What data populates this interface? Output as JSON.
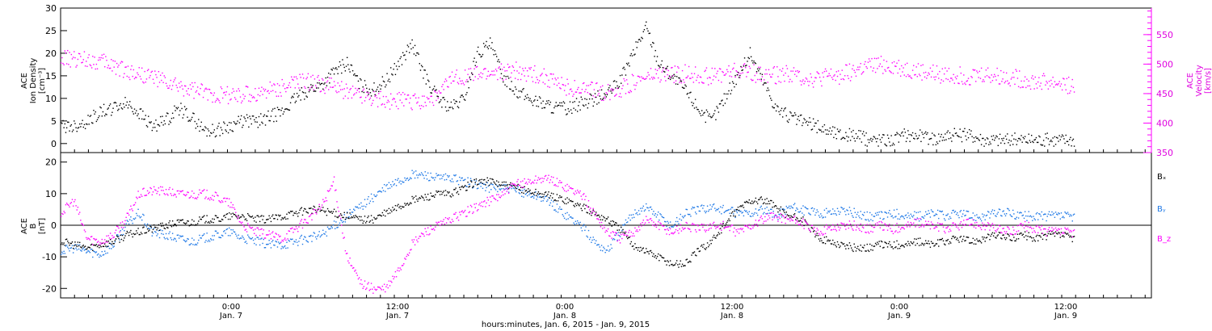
{
  "chart_data": [
    {
      "type": "scatter",
      "panel": "top",
      "ylabel_left": [
        "ACE",
        "Ion Density",
        "[cm⁻³]"
      ],
      "ylabel_right": [
        "ACE",
        "Velocity",
        "[km/s]"
      ],
      "ylim_left": [
        -2,
        30
      ],
      "yticks_left": [
        0,
        5,
        10,
        15,
        20,
        25,
        30
      ],
      "ylim_right": [
        350,
        595
      ],
      "yticks_right": [
        350,
        400,
        450,
        500,
        550
      ],
      "grid": false,
      "series": [
        {
          "name": "",
          "axis": "left",
          "color": "#000000",
          "x": [
            0,
            1,
            2,
            3,
            4,
            5,
            6,
            7,
            8,
            9,
            10,
            11,
            12,
            13,
            14,
            15,
            16,
            17,
            18,
            19,
            20,
            21,
            22,
            23,
            24,
            25,
            26,
            27,
            28,
            29,
            30,
            31,
            32,
            33,
            34,
            35,
            36,
            37,
            38,
            39,
            40,
            41,
            42,
            43,
            44,
            45,
            46,
            47,
            48,
            49,
            50,
            51,
            52,
            53,
            54,
            55,
            56,
            57,
            58,
            59,
            60,
            61,
            62,
            63,
            64,
            65,
            66,
            67,
            68,
            69,
            70,
            71,
            72,
            73,
            74,
            75,
            76,
            77,
            78
          ],
          "y": [
            4,
            4,
            5,
            7,
            8,
            9,
            7,
            4,
            5,
            8,
            6,
            3,
            3,
            4,
            5,
            5,
            6,
            7,
            10,
            12,
            13,
            16,
            18,
            13,
            12,
            14,
            18,
            22,
            15,
            10,
            8,
            10,
            20,
            22,
            15,
            12,
            10,
            9,
            8,
            8,
            9,
            10,
            11,
            14,
            20,
            26,
            18,
            15,
            12,
            8,
            5,
            10,
            15,
            20,
            14,
            8,
            6,
            5,
            4,
            3,
            2,
            2,
            1,
            1,
            1,
            2,
            2,
            1,
            2,
            2,
            2,
            1,
            1,
            1,
            1,
            1,
            1,
            1,
            1
          ]
        },
        {
          "name": "",
          "axis": "right",
          "color": "#ff00ff",
          "x": [
            0,
            1,
            2,
            3,
            4,
            5,
            6,
            7,
            8,
            9,
            10,
            11,
            12,
            13,
            14,
            15,
            16,
            17,
            18,
            19,
            20,
            21,
            22,
            23,
            24,
            25,
            26,
            27,
            28,
            29,
            30,
            31,
            32,
            33,
            34,
            35,
            36,
            37,
            38,
            39,
            40,
            41,
            42,
            43,
            44,
            45,
            46,
            47,
            48,
            49,
            50,
            51,
            52,
            53,
            54,
            55,
            56,
            57,
            58,
            59,
            60,
            61,
            62,
            63,
            64,
            65,
            66,
            67,
            68,
            69,
            70,
            71,
            72,
            73,
            74,
            75,
            76,
            77,
            78
          ],
          "y": [
            510,
            508,
            510,
            505,
            500,
            490,
            485,
            480,
            470,
            462,
            458,
            452,
            450,
            448,
            448,
            450,
            458,
            462,
            470,
            470,
            468,
            462,
            455,
            450,
            445,
            440,
            438,
            438,
            440,
            445,
            475,
            480,
            482,
            485,
            488,
            490,
            486,
            480,
            470,
            462,
            458,
            455,
            452,
            458,
            470,
            478,
            482,
            482,
            485,
            482,
            480,
            485,
            490,
            488,
            480,
            482,
            484,
            480,
            475,
            480,
            482,
            490,
            496,
            500,
            498,
            492,
            488,
            485,
            483,
            482,
            480,
            484,
            480,
            478,
            475,
            470,
            470,
            468,
            460
          ]
        }
      ]
    },
    {
      "type": "line",
      "panel": "bottom",
      "ylabel": [
        "ACE",
        "B",
        "[nT]"
      ],
      "ylim": [
        -23,
        23
      ],
      "yticks": [
        -20,
        -10,
        0,
        10,
        20
      ],
      "zero_line": true,
      "grid": false,
      "series": [
        {
          "name": "Bₓ",
          "color": "#000000",
          "x": [
            0,
            1,
            2,
            3,
            4,
            5,
            6,
            7,
            8,
            9,
            10,
            11,
            12,
            13,
            14,
            15,
            16,
            17,
            18,
            19,
            20,
            21,
            22,
            23,
            24,
            25,
            26,
            27,
            28,
            29,
            30,
            31,
            32,
            33,
            34,
            35,
            36,
            37,
            38,
            39,
            40,
            41,
            42,
            43,
            44,
            45,
            46,
            47,
            48,
            49,
            50,
            51,
            52,
            53,
            54,
            55,
            56,
            57,
            58,
            59,
            60,
            61,
            62,
            63,
            64,
            65,
            66,
            67,
            68,
            69,
            70,
            71,
            72,
            73,
            74,
            75,
            76,
            77,
            78
          ],
          "y": [
            -5,
            -6,
            -7,
            -6,
            -5,
            -3,
            -2,
            -1,
            0,
            1,
            1,
            2,
            2,
            3,
            3,
            2,
            2,
            3,
            4,
            5,
            5,
            4,
            3,
            2,
            2,
            4,
            6,
            8,
            9,
            10,
            10,
            12,
            14,
            14,
            13,
            12,
            11,
            10,
            9,
            8,
            6,
            4,
            2,
            -1,
            -6,
            -8,
            -10,
            -12,
            -12,
            -8,
            -5,
            0,
            5,
            8,
            8,
            6,
            3,
            2,
            -3,
            -5,
            -6,
            -7,
            -7,
            -6,
            -6,
            -6,
            -5,
            -6,
            -5,
            -4,
            -5,
            -4,
            -3,
            -4,
            -3,
            -4,
            -3,
            -3,
            -4
          ]
        },
        {
          "name": "Bᵧ",
          "color": "#1e78e6",
          "x": [
            0,
            1,
            2,
            3,
            4,
            5,
            6,
            7,
            8,
            9,
            10,
            11,
            12,
            13,
            14,
            15,
            16,
            17,
            18,
            19,
            20,
            21,
            22,
            23,
            24,
            25,
            26,
            27,
            28,
            29,
            30,
            31,
            32,
            33,
            34,
            35,
            36,
            37,
            38,
            39,
            40,
            41,
            42,
            43,
            44,
            45,
            46,
            47,
            48,
            49,
            50,
            51,
            52,
            53,
            54,
            55,
            56,
            57,
            58,
            59,
            60,
            61,
            62,
            63,
            64,
            65,
            66,
            67,
            68,
            69,
            70,
            71,
            72,
            73,
            74,
            75,
            76,
            77,
            78
          ],
          "y": [
            -8,
            -7,
            -8,
            -9,
            -6,
            0,
            4,
            -2,
            -3,
            -4,
            -5,
            -4,
            -3,
            -2,
            -4,
            -5,
            -6,
            -6,
            -5,
            -4,
            -3,
            0,
            3,
            6,
            9,
            12,
            14,
            16,
            16,
            15,
            15,
            14,
            13,
            12,
            12,
            11,
            10,
            9,
            6,
            3,
            0,
            -5,
            -8,
            -2,
            4,
            6,
            3,
            0,
            4,
            5,
            6,
            5,
            4,
            4,
            5,
            3,
            6,
            5,
            4,
            4,
            5,
            4,
            3,
            3,
            4,
            3,
            3,
            4,
            3,
            4,
            3,
            3,
            4,
            4,
            3,
            3,
            3,
            3,
            3
          ]
        },
        {
          "name": "B_z",
          "color": "#ff00ff",
          "x": [
            0,
            1,
            2,
            3,
            4,
            5,
            6,
            7,
            8,
            9,
            10,
            11,
            12,
            13,
            14,
            15,
            16,
            17,
            18,
            19,
            20,
            21,
            22,
            23,
            24,
            25,
            26,
            27,
            28,
            29,
            30,
            31,
            32,
            33,
            34,
            35,
            36,
            37,
            38,
            39,
            40,
            41,
            42,
            43,
            44,
            45,
            46,
            47,
            48,
            49,
            50,
            51,
            52,
            53,
            54,
            55,
            56,
            57,
            58,
            59,
            60,
            61,
            62,
            63,
            64,
            65,
            66,
            67,
            68,
            69,
            70,
            71,
            72,
            73,
            74,
            75,
            76,
            77,
            78
          ],
          "y": [
            4,
            8,
            -4,
            -5,
            -3,
            2,
            10,
            11,
            11,
            10,
            10,
            10,
            9,
            7,
            0,
            -2,
            -3,
            -4,
            -1,
            2,
            6,
            14,
            -10,
            -18,
            -20,
            -20,
            -14,
            -6,
            -2,
            0,
            2,
            4,
            6,
            8,
            10,
            13,
            14,
            15,
            14,
            12,
            10,
            4,
            -2,
            -4,
            -2,
            2,
            0,
            -2,
            0,
            -1,
            0,
            0,
            -2,
            0,
            2,
            3,
            2,
            1,
            -2,
            -1,
            0,
            0,
            -1,
            0,
            -1,
            0,
            1,
            0,
            -1,
            0,
            1,
            0,
            -1,
            -2,
            0,
            -1,
            -2,
            -2,
            -2
          ]
        }
      ]
    }
  ],
  "x_axis": {
    "hour_labels": [
      "0:00",
      "12:00",
      "0:00",
      "12:00",
      "0:00",
      "12:00"
    ],
    "day_labels": [
      "Jan. 7",
      "Jan. 7",
      "Jan. 8",
      "Jan. 8",
      "Jan. 9",
      "Jan. 9"
    ],
    "title": "hours:minutes, Jan.  6, 2015 - Jan.  9, 2015"
  }
}
